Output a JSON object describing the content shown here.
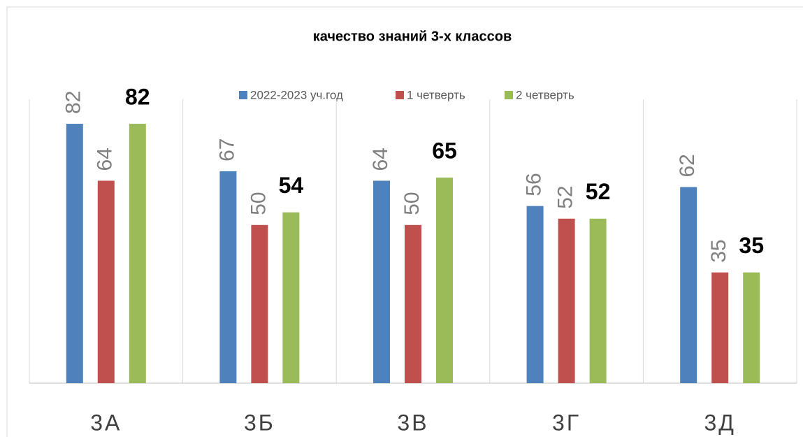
{
  "chart_data": {
    "type": "bar",
    "title": "качество знаний 3-х классов",
    "categories": [
      "3А",
      "3Б",
      "3В",
      "3Г",
      "3Д"
    ],
    "series": [
      {
        "name": "2022-2023 уч.год",
        "color": "#4f81bd",
        "values": [
          82,
          67,
          64,
          56,
          62
        ]
      },
      {
        "name": "1 четверть",
        "color": "#c0504d",
        "values": [
          64,
          50,
          50,
          52,
          35
        ]
      },
      {
        "name": "2 четверть",
        "color": "#9bbb59",
        "values": [
          82,
          54,
          65,
          52,
          35
        ]
      }
    ],
    "legend": "top",
    "grid": "vertical"
  }
}
